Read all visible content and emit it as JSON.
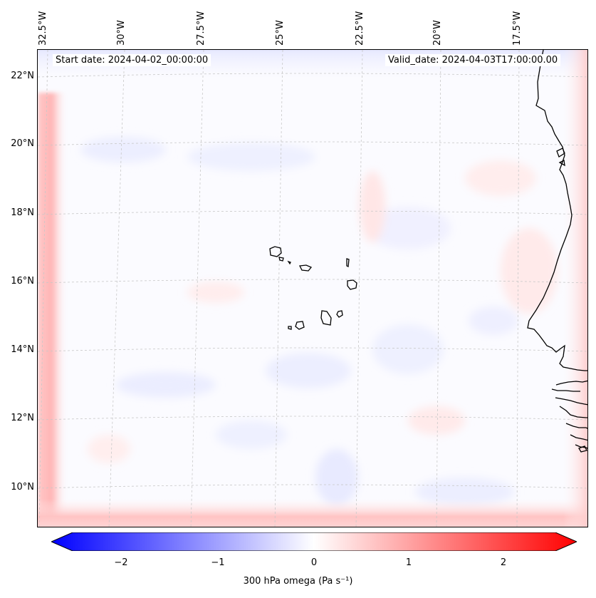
{
  "map": {
    "start_date_text": "Start date: 2024-04-02_00:00:00",
    "valid_date_text": "Valid_date: 2024-04-03T17:00:00.00",
    "longitude_labels": [
      "32.5°W",
      "30°W",
      "27.5°W",
      "25°W",
      "22.5°W",
      "20°W",
      "17.5°W"
    ],
    "latitude_labels": [
      "22°N",
      "20°N",
      "18°N",
      "16°N",
      "14°N",
      "12°N",
      "10°N"
    ],
    "region": "Cabo Verde and West African coast"
  },
  "colorbar": {
    "label": "300 hPa omega (Pa s⁻¹)",
    "ticks": [
      "−2",
      "−1",
      "0",
      "1",
      "2"
    ],
    "min_color": "#0000ff",
    "mid_color": "#ffffff",
    "max_color": "#ff0000"
  }
}
